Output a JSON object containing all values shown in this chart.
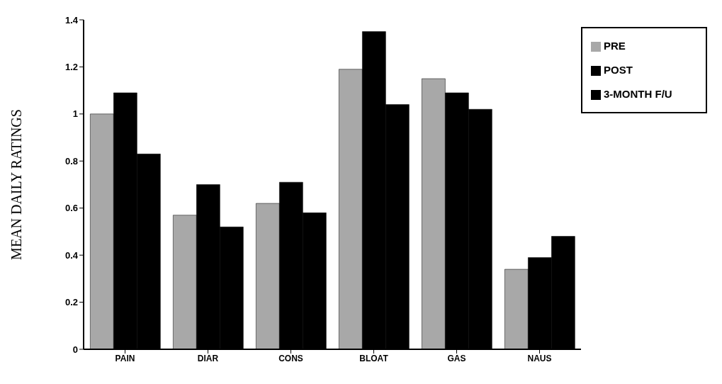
{
  "chart_data": {
    "type": "bar",
    "ylabel": "MEAN DAILY RATINGS",
    "categories": [
      "PAIN",
      "DIAR",
      "CONS",
      "BLOAT",
      "GAS",
      "NAUS"
    ],
    "series": [
      {
        "name": "PRE",
        "color": "#a8a8a8",
        "values": [
          1.0,
          0.57,
          0.62,
          1.19,
          1.15,
          0.34
        ]
      },
      {
        "name": "POST",
        "color": "#000000",
        "values": [
          1.09,
          0.7,
          0.71,
          1.35,
          1.09,
          0.39
        ]
      },
      {
        "name": "3-MONTH F/U",
        "color": "#000000",
        "values": [
          0.83,
          0.52,
          0.58,
          1.04,
          1.02,
          0.48
        ]
      }
    ],
    "ylim": [
      0,
      1.4
    ],
    "yticks": [
      0,
      0.2,
      0.4,
      0.6,
      0.8,
      1,
      1.2,
      1.4
    ],
    "grid": false,
    "legend": "top right"
  }
}
